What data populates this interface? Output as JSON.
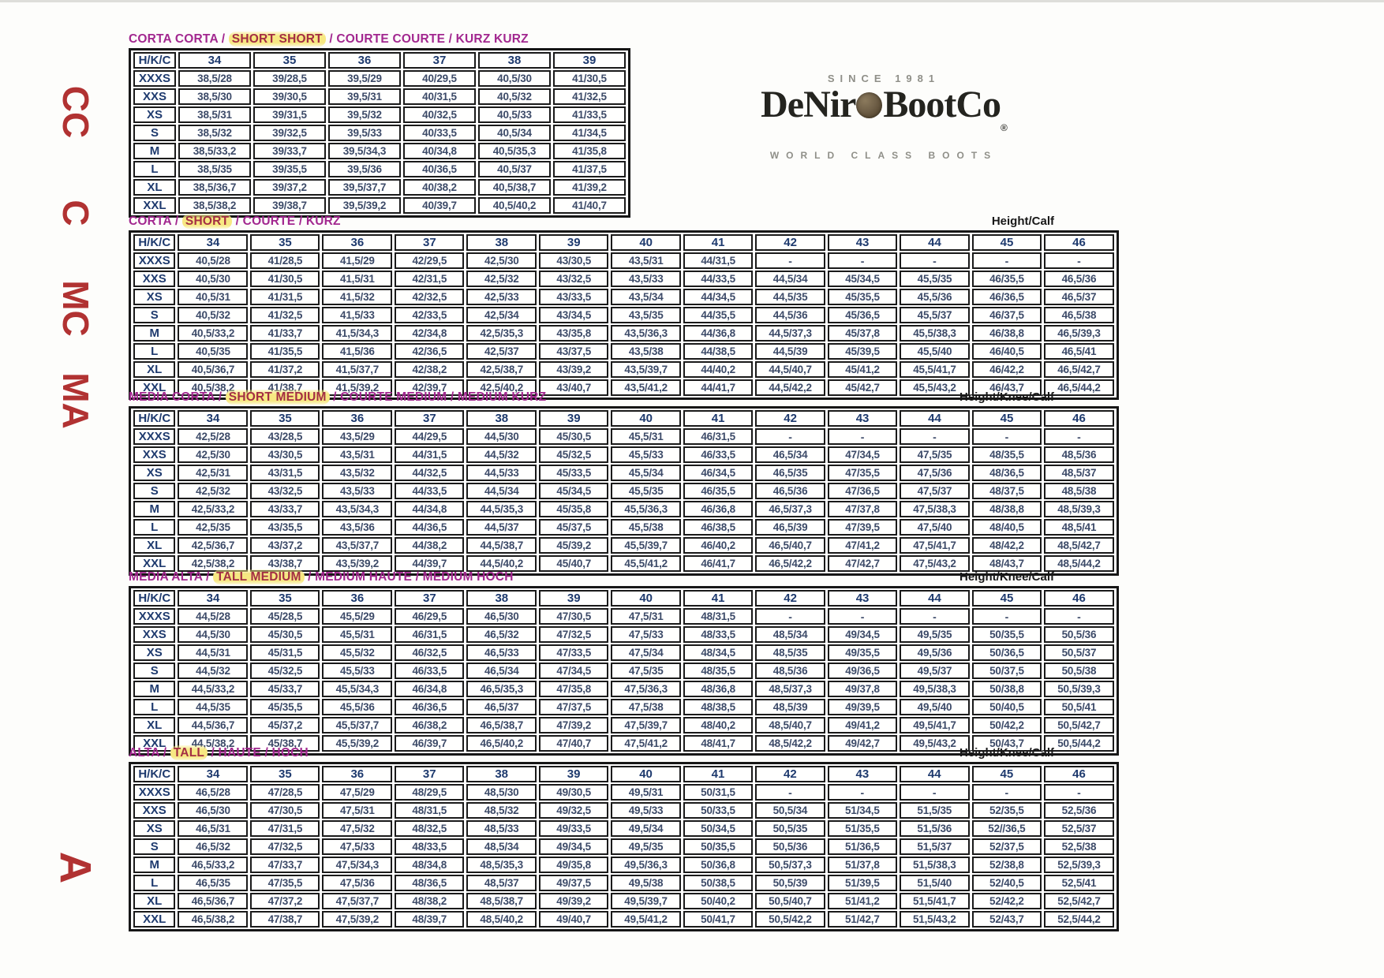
{
  "logo": {
    "since": "SINCE 1981",
    "name_left": "DeNir",
    "name_right": "BootCo",
    "registered": "®",
    "coin_icon": "coin-o",
    "tagline": "WORLD CLASS BOOTS"
  },
  "side_labels": [
    "CC",
    "C",
    "MC",
    "MA",
    "A"
  ],
  "colors": {
    "title_magenta": "#a2278f",
    "highlight_text_red": "#a32e44",
    "highlight_yellow": "#f7e882",
    "header_navy": "#1e3a6e",
    "cell_navy": "#3c4a68",
    "side_code_red": "#b13232",
    "coin_brown": "#6f5f47",
    "border_black": "#1a1a1a"
  },
  "tables": [
    {
      "id": "corta-corta",
      "title_parts": [
        {
          "text": "CORTA CORTA / ",
          "hl": false
        },
        {
          "text": "SHORT SHORT",
          "hl": true
        },
        {
          "text": " / COURTE COURTE / KURZ KURZ",
          "hl": false
        }
      ],
      "right_label": "",
      "corner": "H/K/C",
      "sizes": [
        "34",
        "35",
        "36",
        "37",
        "38",
        "39"
      ],
      "highlight_marks": [],
      "rows": [
        {
          "label": "XXXS",
          "values": [
            "38,5/28",
            "39/28,5",
            "39,5/29",
            "40/29,5",
            "40,5/30",
            "41/30,5"
          ]
        },
        {
          "label": "XXS",
          "values": [
            "38,5/30",
            "39/30,5",
            "39,5/31",
            "40/31,5",
            "40,5/32",
            "41/32,5"
          ]
        },
        {
          "label": "XS",
          "values": [
            "38,5/31",
            "39/31,5",
            "39,5/32",
            "40/32,5",
            "40,5/33",
            "41/33,5"
          ]
        },
        {
          "label": "S",
          "values": [
            "38,5/32",
            "39/32,5",
            "39,5/33",
            "40/33,5",
            "40,5/34",
            "41/34,5"
          ]
        },
        {
          "label": "M",
          "values": [
            "38,5/33,2",
            "39/33,7",
            "39,5/34,3",
            "40/34,8",
            "40,5/35,3",
            "41/35,8"
          ]
        },
        {
          "label": "L",
          "values": [
            "38,5/35",
            "39/35,5",
            "39,5/36",
            "40/36,5",
            "40,5/37",
            "41/37,5"
          ]
        },
        {
          "label": "XL",
          "values": [
            "38,5/36,7",
            "39/37,2",
            "39,5/37,7",
            "40/38,2",
            "40,5/38,7",
            "41/39,2"
          ]
        },
        {
          "label": "XXL",
          "values": [
            "38,5/38,2",
            "39/38,7",
            "39,5/39,2",
            "40/39,7",
            "40,5/40,2",
            "41/40,7"
          ]
        }
      ]
    },
    {
      "id": "corta",
      "title_parts": [
        {
          "text": "CORTA / ",
          "hl": false
        },
        {
          "text": "SHORT",
          "hl": true
        },
        {
          "text": " / COURTE / KURZ",
          "hl": false
        }
      ],
      "right_label": "Height/Calf",
      "corner": "H/K/C",
      "sizes": [
        "34",
        "35",
        "36",
        "37",
        "38",
        "39",
        "40",
        "41",
        "42",
        "43",
        "44",
        "45",
        "46"
      ],
      "highlight_marks": [
        {
          "row": "XXL",
          "size": "35"
        },
        {
          "row": "XXL",
          "size": "36"
        }
      ],
      "rows": [
        {
          "label": "XXXS",
          "values": [
            "40,5/28",
            "41/28,5",
            "41,5/29",
            "42/29,5",
            "42,5/30",
            "43/30,5",
            "43,5/31",
            "44/31,5",
            "-",
            "-",
            "-",
            "-",
            "-"
          ]
        },
        {
          "label": "XXS",
          "values": [
            "40,5/30",
            "41/30,5",
            "41,5/31",
            "42/31,5",
            "42,5/32",
            "43/32,5",
            "43,5/33",
            "44/33,5",
            "44,5/34",
            "45/34,5",
            "45,5/35",
            "46/35,5",
            "46,5/36"
          ]
        },
        {
          "label": "XS",
          "values": [
            "40,5/31",
            "41/31,5",
            "41,5/32",
            "42/32,5",
            "42,5/33",
            "43/33,5",
            "43,5/34",
            "44/34,5",
            "44,5/35",
            "45/35,5",
            "45,5/36",
            "46/36,5",
            "46,5/37"
          ]
        },
        {
          "label": "S",
          "values": [
            "40,5/32",
            "41/32,5",
            "41,5/33",
            "42/33,5",
            "42,5/34",
            "43/34,5",
            "43,5/35",
            "44/35,5",
            "44,5/36",
            "45/36,5",
            "45,5/37",
            "46/37,5",
            "46,5/38"
          ]
        },
        {
          "label": "M",
          "values": [
            "40,5/33,2",
            "41/33,7",
            "41,5/34,3",
            "42/34,8",
            "42,5/35,3",
            "43/35,8",
            "43,5/36,3",
            "44/36,8",
            "44,5/37,3",
            "45/37,8",
            "45,5/38,3",
            "46/38,8",
            "46,5/39,3"
          ]
        },
        {
          "label": "L",
          "values": [
            "40,5/35",
            "41/35,5",
            "41,5/36",
            "42/36,5",
            "42,5/37",
            "43/37,5",
            "43,5/38",
            "44/38,5",
            "44,5/39",
            "45/39,5",
            "45,5/40",
            "46/40,5",
            "46,5/41"
          ]
        },
        {
          "label": "XL",
          "values": [
            "40,5/36,7",
            "41/37,2",
            "41,5/37,7",
            "42/38,2",
            "42,5/38,7",
            "43/39,2",
            "43,5/39,7",
            "44/40,2",
            "44,5/40,7",
            "45/41,2",
            "45,5/41,7",
            "46/42,2",
            "46,5/42,7"
          ]
        },
        {
          "label": "XXL",
          "values": [
            "40,5/38,2",
            "41/38,7",
            "41,5/39,2",
            "42/39,7",
            "42,5/40,2",
            "43/40,7",
            "43,5/41,2",
            "44/41,7",
            "44,5/42,2",
            "45/42,7",
            "45,5/43,2",
            "46/43,7",
            "46,5/44,2"
          ]
        }
      ]
    },
    {
      "id": "media-corta",
      "title_parts": [
        {
          "text": "MEDIA CORTA / ",
          "hl": false
        },
        {
          "text": "SHORT MEDIUM",
          "hl": true
        },
        {
          "text": " / COURTE MEDIUM / MEDIUM KURZ",
          "hl": false
        }
      ],
      "right_label": "Height/Knee/Calf",
      "corner": "H/K/C",
      "sizes": [
        "34",
        "35",
        "36",
        "37",
        "38",
        "39",
        "40",
        "41",
        "42",
        "43",
        "44",
        "45",
        "46"
      ],
      "highlight_marks": [
        {
          "row": "XXL",
          "size": "35"
        }
      ],
      "rows": [
        {
          "label": "XXXS",
          "values": [
            "42,5/28",
            "43/28,5",
            "43,5/29",
            "44/29,5",
            "44,5/30",
            "45/30,5",
            "45,5/31",
            "46/31,5",
            "-",
            "-",
            "-",
            "-",
            "-"
          ]
        },
        {
          "label": "XXS",
          "values": [
            "42,5/30",
            "43/30,5",
            "43,5/31",
            "44/31,5",
            "44,5/32",
            "45/32,5",
            "45,5/33",
            "46/33,5",
            "46,5/34",
            "47/34,5",
            "47,5/35",
            "48/35,5",
            "48,5/36"
          ]
        },
        {
          "label": "XS",
          "values": [
            "42,5/31",
            "43/31,5",
            "43,5/32",
            "44/32,5",
            "44,5/33",
            "45/33,5",
            "45,5/34",
            "46/34,5",
            "46,5/35",
            "47/35,5",
            "47,5/36",
            "48/36,5",
            "48,5/37"
          ]
        },
        {
          "label": "S",
          "values": [
            "42,5/32",
            "43/32,5",
            "43,5/33",
            "44/33,5",
            "44,5/34",
            "45/34,5",
            "45,5/35",
            "46/35,5",
            "46,5/36",
            "47/36,5",
            "47,5/37",
            "48/37,5",
            "48,5/38"
          ]
        },
        {
          "label": "M",
          "values": [
            "42,5/33,2",
            "43/33,7",
            "43,5/34,3",
            "44/34,8",
            "44,5/35,3",
            "45/35,8",
            "45,5/36,3",
            "46/36,8",
            "46,5/37,3",
            "47/37,8",
            "47,5/38,3",
            "48/38,8",
            "48,5/39,3"
          ]
        },
        {
          "label": "L",
          "values": [
            "42,5/35",
            "43/35,5",
            "43,5/36",
            "44/36,5",
            "44,5/37",
            "45/37,5",
            "45,5/38",
            "46/38,5",
            "46,5/39",
            "47/39,5",
            "47,5/40",
            "48/40,5",
            "48,5/41"
          ]
        },
        {
          "label": "XL",
          "values": [
            "42,5/36,7",
            "43/37,2",
            "43,5/37,7",
            "44/38,2",
            "44,5/38,7",
            "45/39,2",
            "45,5/39,7",
            "46/40,2",
            "46,5/40,7",
            "47/41,2",
            "47,5/41,7",
            "48/42,2",
            "48,5/42,7"
          ]
        },
        {
          "label": "XXL",
          "values": [
            "42,5/38,2",
            "43/38,7",
            "43,5/39,2",
            "44/39,7",
            "44,5/40,2",
            "45/40,7",
            "45,5/41,2",
            "46/41,7",
            "46,5/42,2",
            "47/42,7",
            "47,5/43,2",
            "48/43,7",
            "48,5/44,2"
          ]
        }
      ]
    },
    {
      "id": "media-alta",
      "title_parts": [
        {
          "text": "MEDIA ALTA / ",
          "hl": false
        },
        {
          "text": "TALL MEDIUM",
          "hl": true
        },
        {
          "text": " / MEDIUM HAUTE / MEDIUM HOCH",
          "hl": false
        }
      ],
      "right_label": "Height/Knee/Calf",
      "corner": "H/K/C",
      "sizes": [
        "34",
        "35",
        "36",
        "37",
        "38",
        "39",
        "40",
        "41",
        "42",
        "43",
        "44",
        "45",
        "46"
      ],
      "highlight_marks": [
        {
          "row": "XXL",
          "size": "34"
        }
      ],
      "rows": [
        {
          "label": "XXXS",
          "values": [
            "44,5/28",
            "45/28,5",
            "45,5/29",
            "46/29,5",
            "46,5/30",
            "47/30,5",
            "47,5/31",
            "48/31,5",
            "-",
            "-",
            "-",
            "-",
            "-"
          ]
        },
        {
          "label": "XXS",
          "values": [
            "44,5/30",
            "45/30,5",
            "45,5/31",
            "46/31,5",
            "46,5/32",
            "47/32,5",
            "47,5/33",
            "48/33,5",
            "48,5/34",
            "49/34,5",
            "49,5/35",
            "50/35,5",
            "50,5/36"
          ]
        },
        {
          "label": "XS",
          "values": [
            "44,5/31",
            "45/31,5",
            "45,5/32",
            "46/32,5",
            "46,5/33",
            "47/33,5",
            "47,5/34",
            "48/34,5",
            "48,5/35",
            "49/35,5",
            "49,5/36",
            "50/36,5",
            "50,5/37"
          ]
        },
        {
          "label": "S",
          "values": [
            "44,5/32",
            "45/32,5",
            "45,5/33",
            "46/33,5",
            "46,5/34",
            "47/34,5",
            "47,5/35",
            "48/35,5",
            "48,5/36",
            "49/36,5",
            "49,5/37",
            "50/37,5",
            "50,5/38"
          ]
        },
        {
          "label": "M",
          "values": [
            "44,5/33,2",
            "45/33,7",
            "45,5/34,3",
            "46/34,8",
            "46,5/35,3",
            "47/35,8",
            "47,5/36,3",
            "48/36,8",
            "48,5/37,3",
            "49/37,8",
            "49,5/38,3",
            "50/38,8",
            "50,5/39,3"
          ]
        },
        {
          "label": "L",
          "values": [
            "44,5/35",
            "45/35,5",
            "45,5/36",
            "46/36,5",
            "46,5/37",
            "47/37,5",
            "47,5/38",
            "48/38,5",
            "48,5/39",
            "49/39,5",
            "49,5/40",
            "50/40,5",
            "50,5/41"
          ]
        },
        {
          "label": "XL",
          "values": [
            "44,5/36,7",
            "45/37,2",
            "45,5/37,7",
            "46/38,2",
            "46,5/38,7",
            "47/39,2",
            "47,5/39,7",
            "48/40,2",
            "48,5/40,7",
            "49/41,2",
            "49,5/41,7",
            "50/42,2",
            "50,5/42,7"
          ]
        },
        {
          "label": "XXL",
          "values": [
            "44,5/38,2",
            "45/38,7",
            "45,5/39,2",
            "46/39,7",
            "46,5/40,2",
            "47/40,7",
            "47,5/41,2",
            "48/41,7",
            "48,5/42,2",
            "49/42,7",
            "49,5/43,2",
            "50/43,7",
            "50,5/44,2"
          ]
        }
      ]
    },
    {
      "id": "alta",
      "title_parts": [
        {
          "text": "ALTA / ",
          "hl": false
        },
        {
          "text": "TALL",
          "hl": true
        },
        {
          "text": " / HAUTE / HOCH",
          "hl": false
        }
      ],
      "right_label": "Height/Knee/Calf",
      "corner": "H/K/C",
      "sizes": [
        "34",
        "35",
        "36",
        "37",
        "38",
        "39",
        "40",
        "41",
        "42",
        "43",
        "44",
        "45",
        "46"
      ],
      "highlight_marks": [],
      "rows": [
        {
          "label": "XXXS",
          "values": [
            "46,5/28",
            "47/28,5",
            "47,5/29",
            "48/29,5",
            "48,5/30",
            "49/30,5",
            "49,5/31",
            "50/31,5",
            "-",
            "-",
            "-",
            "-",
            "-"
          ]
        },
        {
          "label": "XXS",
          "values": [
            "46,5/30",
            "47/30,5",
            "47,5/31",
            "48/31,5",
            "48,5/32",
            "49/32,5",
            "49,5/33",
            "50/33,5",
            "50,5/34",
            "51/34,5",
            "51,5/35",
            "52/35,5",
            "52,5/36"
          ]
        },
        {
          "label": "XS",
          "values": [
            "46,5/31",
            "47/31,5",
            "47,5/32",
            "48/32,5",
            "48,5/33",
            "49/33,5",
            "49,5/34",
            "50/34,5",
            "50,5/35",
            "51/35,5",
            "51,5/36",
            "52//36,5",
            "52,5/37"
          ]
        },
        {
          "label": "S",
          "values": [
            "46,5/32",
            "47/32,5",
            "47,5/33",
            "48/33,5",
            "48,5/34",
            "49/34,5",
            "49,5/35",
            "50/35,5",
            "50,5/36",
            "51/36,5",
            "51,5/37",
            "52/37,5",
            "52,5/38"
          ]
        },
        {
          "label": "M",
          "values": [
            "46,5/33,2",
            "47/33,7",
            "47,5/34,3",
            "48/34,8",
            "48,5/35,3",
            "49/35,8",
            "49,5/36,3",
            "50/36,8",
            "50,5/37,3",
            "51/37,8",
            "51,5/38,3",
            "52/38,8",
            "52,5/39,3"
          ]
        },
        {
          "label": "L",
          "values": [
            "46,5/35",
            "47/35,5",
            "47,5/36",
            "48/36,5",
            "48,5/37",
            "49/37,5",
            "49,5/38",
            "50/38,5",
            "50,5/39",
            "51/39,5",
            "51,5/40",
            "52/40,5",
            "52,5/41"
          ]
        },
        {
          "label": "XL",
          "values": [
            "46,5/36,7",
            "47/37,2",
            "47,5/37,7",
            "48/38,2",
            "48,5/38,7",
            "49/39,2",
            "49,5/39,7",
            "50/40,2",
            "50,5/40,7",
            "51/41,2",
            "51,5/41,7",
            "52/42,2",
            "52,5/42,7"
          ]
        },
        {
          "label": "XXL",
          "values": [
            "46,5/38,2",
            "47/38,7",
            "47,5/39,2",
            "48/39,7",
            "48,5/40,2",
            "49/40,7",
            "49,5/41,2",
            "50/41,7",
            "50,5/42,2",
            "51/42,7",
            "51,5/43,2",
            "52/43,7",
            "52,5/44,2"
          ]
        }
      ]
    }
  ]
}
